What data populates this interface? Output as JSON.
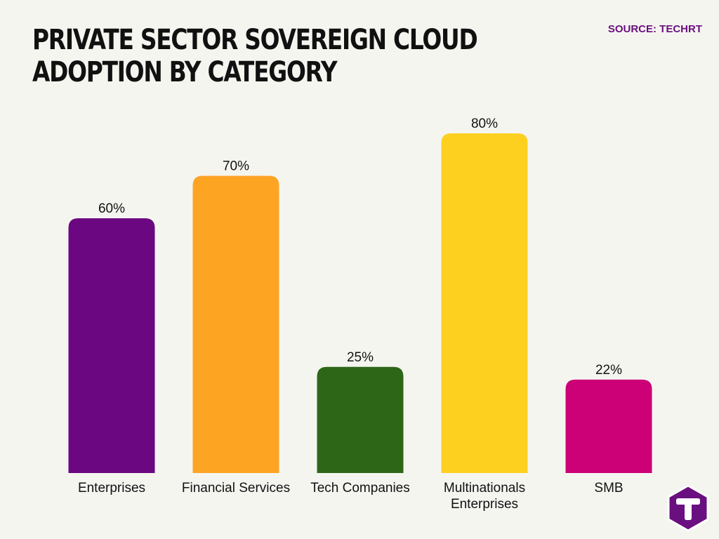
{
  "title": "PRIVATE SECTOR SOVEREIGN CLOUD ADOPTION BY CATEGORY",
  "source": "SOURCE: TECHRT",
  "logo": {
    "icon": "techrt-logo-icon",
    "letter": "T",
    "color": "#6a0f7f"
  },
  "chart_data": {
    "type": "bar",
    "categories": [
      "Enterprises",
      "Financial Services",
      "Tech Companies",
      "Multinationals Enterprises",
      "SMB"
    ],
    "category_lines": [
      [
        "Enterprises"
      ],
      [
        "Financial Services"
      ],
      [
        "Tech Companies"
      ],
      [
        "Multinationals",
        "Enterprises"
      ],
      [
        "SMB"
      ]
    ],
    "values": [
      60,
      70,
      25,
      80,
      22
    ],
    "value_labels": [
      "60%",
      "70%",
      "25%",
      "80%",
      "22%"
    ],
    "colors": [
      "#6b0780",
      "#fda423",
      "#2e6618",
      "#fdd020",
      "#cc0077"
    ],
    "unit": "%",
    "ylim": [
      0,
      80
    ],
    "grid": false,
    "legend": "none"
  }
}
